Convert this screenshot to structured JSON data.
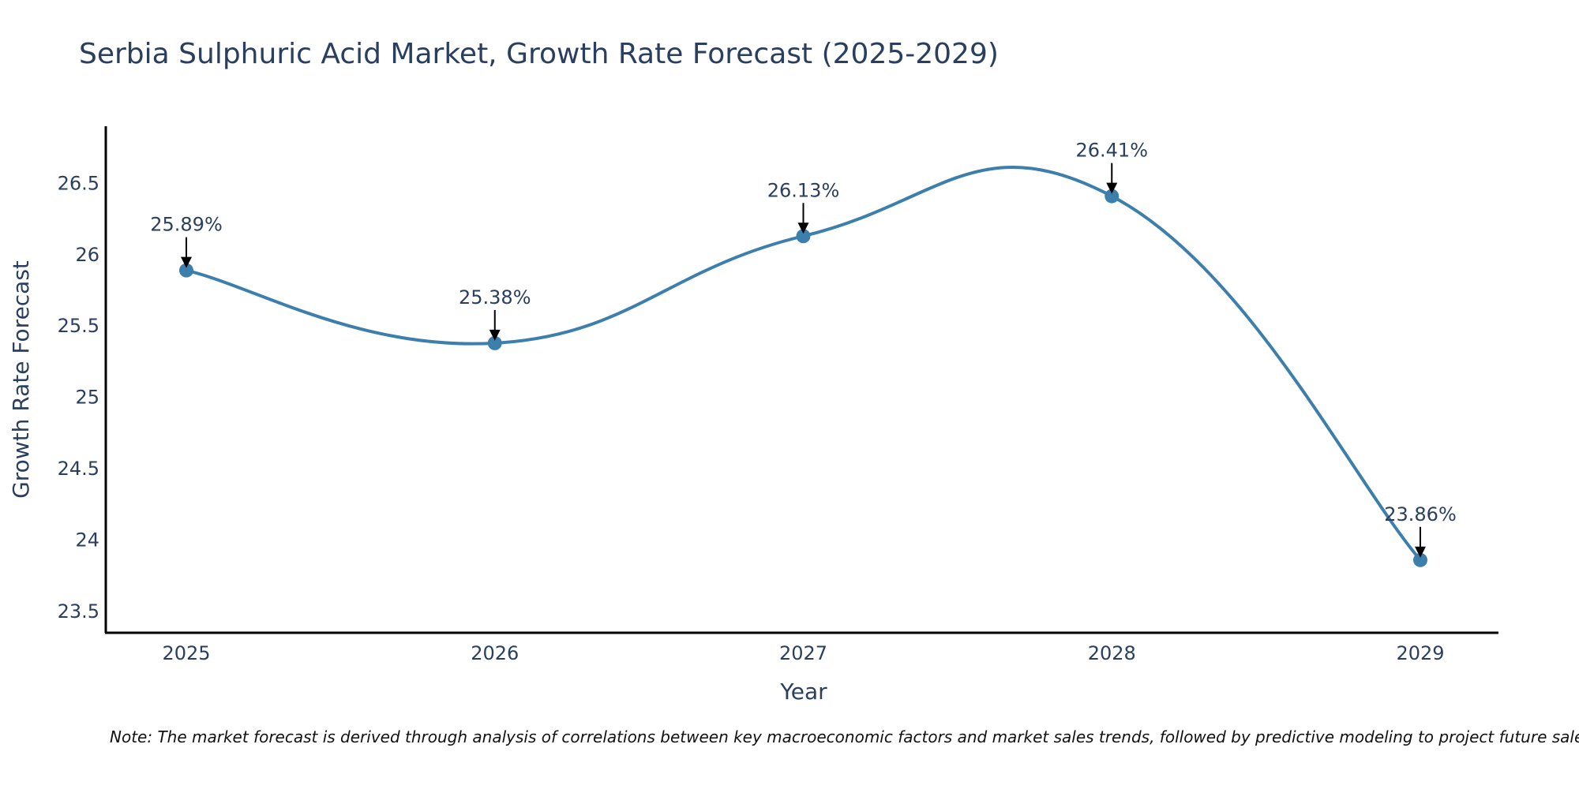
{
  "chart_data": {
    "type": "line",
    "title": "Serbia Sulphuric Acid Market, Growth Rate Forecast (2025-2029)",
    "xlabel": "Year",
    "ylabel": "Growth Rate Forecast",
    "categories": [
      "2025",
      "2026",
      "2027",
      "2028",
      "2029"
    ],
    "series": [
      {
        "name": "Growth Rate Forecast",
        "values": [
          25.89,
          25.38,
          26.13,
          26.41,
          23.86
        ],
        "color": "#3d7fac"
      }
    ],
    "data_labels": [
      "25.89%",
      "25.38%",
      "26.13%",
      "26.41%",
      "23.86%"
    ],
    "yticks": [
      "23.5",
      "24",
      "24.5",
      "25",
      "25.5",
      "26",
      "26.5"
    ],
    "ylim": [
      23.35,
      26.9
    ],
    "grid": false,
    "note": "Note: The market forecast is derived through analysis of correlations between key macroeconomic factors and market sales trends, followed by predictive modeling to project future sales."
  }
}
